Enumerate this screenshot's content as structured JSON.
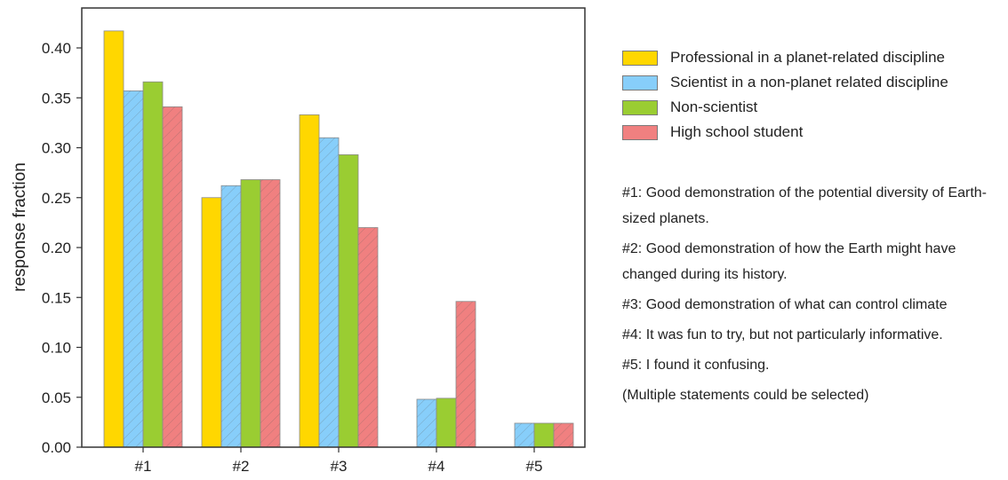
{
  "chart_data": {
    "type": "bar",
    "ylabel": "response fraction",
    "xlabel": "",
    "categories": [
      "#1",
      "#2",
      "#3",
      "#4",
      "#5"
    ],
    "ylim": [
      0,
      0.44
    ],
    "yticks": [
      "0.00",
      "0.05",
      "0.10",
      "0.15",
      "0.20",
      "0.25",
      "0.30",
      "0.35",
      "0.40"
    ],
    "grid": false,
    "legend_position": "right",
    "series": [
      {
        "name": "Professional in a planet-related discipline",
        "color": "#FFD700",
        "hatch": false,
        "values": [
          0.417,
          0.25,
          0.333,
          0.0,
          0.0
        ]
      },
      {
        "name": "Scientist in a non-planet related discipline",
        "color": "#87CEFA",
        "hatch": true,
        "values": [
          0.357,
          0.262,
          0.31,
          0.048,
          0.024
        ]
      },
      {
        "name": "Non-scientist",
        "color": "#9ACD32",
        "hatch": false,
        "values": [
          0.366,
          0.268,
          0.293,
          0.049,
          0.024
        ]
      },
      {
        "name": "High school student",
        "color": "#F08080",
        "hatch": true,
        "values": [
          0.341,
          0.268,
          0.22,
          0.146,
          0.024
        ]
      }
    ]
  },
  "notes": [
    "#1: Good demonstration of the potential diversity of Earth-sized planets.",
    "#2: Good demonstration of how the Earth might have changed during its history.",
    "#3: Good demonstration of what can control climate",
    "#4: It was fun to try, but not particularly informative.",
    "#5: I found it confusing.",
    "(Multiple statements could be selected)"
  ]
}
